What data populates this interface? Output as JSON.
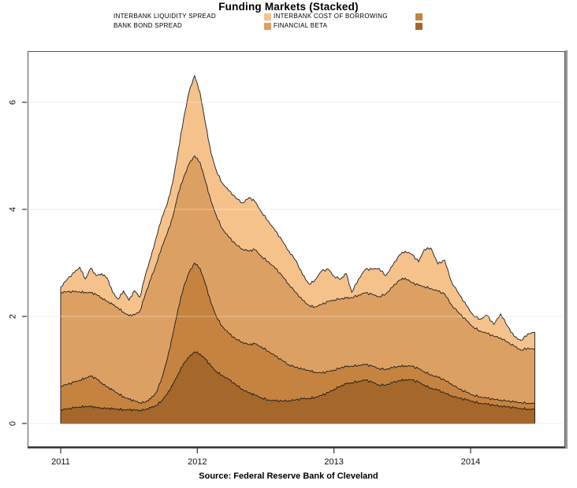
{
  "chart_data": {
    "type": "area",
    "stacked": true,
    "title": "Funding Markets (Stacked)",
    "source": "Source: Federal Reserve Bank of Cleveland",
    "background": "#ffffff",
    "outline_color": "#1c1c1c",
    "grid": "horizontal-only",
    "legend_position": "top-two-columns",
    "axes": {
      "x_ticks": [
        2011,
        2012,
        2013,
        2014
      ],
      "y_ticks": [
        0,
        2,
        4,
        6
      ],
      "x_range": [
        2011.0,
        2014.47
      ],
      "y_range": [
        0,
        6.96
      ],
      "tick_color": "#333333",
      "grid_color": "#e9e9e9"
    },
    "x": [
      2011.0,
      2011.05,
      2011.1,
      2011.14,
      2011.18,
      2011.22,
      2011.26,
      2011.3,
      2011.34,
      2011.38,
      2011.42,
      2011.46,
      2011.5,
      2011.54,
      2011.58,
      2011.62,
      2011.66,
      2011.7,
      2011.74,
      2011.78,
      2011.82,
      2011.86,
      2011.9,
      2011.94,
      2011.98,
      2012.02,
      2012.06,
      2012.1,
      2012.14,
      2012.18,
      2012.23,
      2012.28,
      2012.33,
      2012.38,
      2012.42,
      2012.47,
      2012.52,
      2012.57,
      2012.62,
      2012.67,
      2012.72,
      2012.77,
      2012.82,
      2012.86,
      2012.91,
      2012.96,
      2013.0,
      2013.05,
      2013.09,
      2013.13,
      2013.18,
      2013.23,
      2013.28,
      2013.33,
      2013.38,
      2013.43,
      2013.48,
      2013.52,
      2013.57,
      2013.62,
      2013.66,
      2013.71,
      2013.76,
      2013.81,
      2013.86,
      2013.92,
      2013.97,
      2014.02,
      2014.07,
      2014.12,
      2014.17,
      2014.22,
      2014.27,
      2014.32,
      2014.37,
      2014.42,
      2014.47
    ],
    "series": [
      {
        "name": "FINANCIAL BETA",
        "color": "#A5672A",
        "values": [
          0.26,
          0.27,
          0.29,
          0.31,
          0.32,
          0.31,
          0.3,
          0.29,
          0.28,
          0.27,
          0.27,
          0.26,
          0.25,
          0.25,
          0.25,
          0.26,
          0.29,
          0.34,
          0.43,
          0.55,
          0.72,
          0.93,
          1.12,
          1.24,
          1.34,
          1.3,
          1.2,
          1.07,
          0.97,
          0.9,
          0.82,
          0.73,
          0.64,
          0.57,
          0.53,
          0.48,
          0.44,
          0.42,
          0.42,
          0.43,
          0.44,
          0.46,
          0.47,
          0.49,
          0.52,
          0.58,
          0.64,
          0.7,
          0.74,
          0.76,
          0.79,
          0.81,
          0.77,
          0.72,
          0.72,
          0.76,
          0.8,
          0.82,
          0.81,
          0.77,
          0.72,
          0.66,
          0.62,
          0.57,
          0.52,
          0.47,
          0.44,
          0.41,
          0.38,
          0.36,
          0.34,
          0.33,
          0.31,
          0.29,
          0.28,
          0.27,
          0.26
        ]
      },
      {
        "name": "INTERBANK COST OF BORROWING",
        "color": "#C5833F",
        "values": [
          0.44,
          0.46,
          0.48,
          0.5,
          0.53,
          0.57,
          0.54,
          0.47,
          0.4,
          0.35,
          0.29,
          0.24,
          0.2,
          0.17,
          0.14,
          0.14,
          0.17,
          0.24,
          0.42,
          0.65,
          0.93,
          1.22,
          1.43,
          1.58,
          1.66,
          1.6,
          1.4,
          1.18,
          1.03,
          0.92,
          0.86,
          0.85,
          0.88,
          0.9,
          0.96,
          0.95,
          0.91,
          0.84,
          0.76,
          0.67,
          0.61,
          0.55,
          0.52,
          0.47,
          0.42,
          0.39,
          0.36,
          0.34,
          0.32,
          0.31,
          0.3,
          0.29,
          0.3,
          0.31,
          0.29,
          0.28,
          0.27,
          0.26,
          0.26,
          0.25,
          0.25,
          0.25,
          0.24,
          0.24,
          0.22,
          0.17,
          0.14,
          0.12,
          0.12,
          0.11,
          0.11,
          0.11,
          0.11,
          0.11,
          0.11,
          0.11,
          0.11
        ]
      },
      {
        "name": "BANK BOND SPREAD",
        "color": "#DDA063",
        "values": [
          1.75,
          1.73,
          1.69,
          1.65,
          1.6,
          1.56,
          1.57,
          1.59,
          1.6,
          1.6,
          1.6,
          1.58,
          1.56,
          1.61,
          1.71,
          2.02,
          2.24,
          2.4,
          2.45,
          2.35,
          2.2,
          2.15,
          2.05,
          2.03,
          2.0,
          1.98,
          1.92,
          1.9,
          1.88,
          1.83,
          1.8,
          1.77,
          1.74,
          1.75,
          1.76,
          1.69,
          1.67,
          1.64,
          1.58,
          1.5,
          1.4,
          1.29,
          1.21,
          1.22,
          1.28,
          1.31,
          1.31,
          1.29,
          1.28,
          1.28,
          1.31,
          1.34,
          1.34,
          1.34,
          1.41,
          1.51,
          1.61,
          1.64,
          1.56,
          1.56,
          1.59,
          1.61,
          1.61,
          1.61,
          1.48,
          1.41,
          1.34,
          1.27,
          1.23,
          1.21,
          1.18,
          1.16,
          1.1,
          1.04,
          0.98,
          1.03,
          1.01
        ]
      },
      {
        "name": "INTERBANK LIQUIDITY SPREAD",
        "color": "#F5C28C",
        "values": [
          0.1,
          0.24,
          0.36,
          0.46,
          0.25,
          0.46,
          0.35,
          0.45,
          0.44,
          0.23,
          0.16,
          0.4,
          0.29,
          0.45,
          0.26,
          0.36,
          0.4,
          0.5,
          0.55,
          0.55,
          0.65,
          0.8,
          1.1,
          1.35,
          1.5,
          1.3,
          1.08,
          0.9,
          0.84,
          0.85,
          0.87,
          0.87,
          0.86,
          1.0,
          0.9,
          0.83,
          0.76,
          0.7,
          0.66,
          0.62,
          0.6,
          0.48,
          0.4,
          0.5,
          0.63,
          0.6,
          0.44,
          0.37,
          0.46,
          0.1,
          0.3,
          0.44,
          0.47,
          0.53,
          0.34,
          0.4,
          0.47,
          0.5,
          0.53,
          0.44,
          0.69,
          0.76,
          0.51,
          0.63,
          0.43,
          0.35,
          0.28,
          0.22,
          0.22,
          0.34,
          0.22,
          0.45,
          0.3,
          0.18,
          0.18,
          0.27,
          0.32
        ]
      }
    ]
  }
}
